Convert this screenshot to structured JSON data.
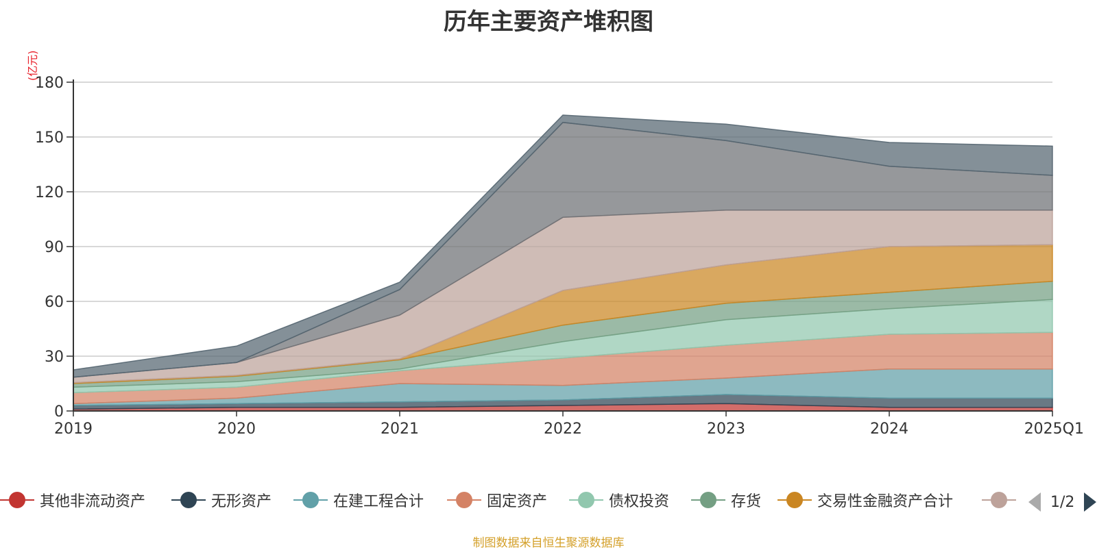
{
  "chart_data": {
    "type": "area",
    "title": "历年主要资产堆积图",
    "unit_label": "(亿元)",
    "categories": [
      "2019",
      "2020",
      "2021",
      "2022",
      "2023",
      "2024",
      "2025Q1"
    ],
    "ylim": [
      0,
      180
    ],
    "yticks": [
      "0",
      "30",
      "60",
      "90",
      "120",
      "150",
      "180"
    ],
    "grid": true,
    "stacked": true,
    "legend_position": "bottom",
    "series": [
      {
        "name": "其他非流动资产",
        "color": "#c23531",
        "values": [
          1,
          2,
          2,
          3,
          4,
          2,
          2
        ]
      },
      {
        "name": "无形资产",
        "color": "#2f4554",
        "values": [
          2,
          2,
          3,
          3,
          5,
          5,
          5
        ]
      },
      {
        "name": "在建工程合计",
        "color": "#61a0a8",
        "values": [
          1,
          3,
          10,
          8,
          9,
          16,
          16
        ]
      },
      {
        "name": "固定资产",
        "color": "#d48265",
        "values": [
          6,
          6,
          7,
          15,
          18,
          19,
          20
        ]
      },
      {
        "name": "债权投资",
        "color": "#91c7ae",
        "values": [
          3,
          3,
          1,
          9,
          14,
          14,
          18
        ]
      },
      {
        "name": "存货",
        "color": "#749f83",
        "values": [
          2,
          3,
          5,
          9,
          9,
          9,
          10
        ]
      },
      {
        "name": "交易性金融资产合计",
        "color": "#ca8622",
        "values": [
          0.5,
          0.5,
          0.5,
          19,
          21,
          25,
          20
        ]
      },
      {
        "name": "",
        "color": "#bda29a",
        "values": [
          3,
          7,
          24,
          40,
          30,
          20,
          19
        ]
      },
      {
        "name": "",
        "color": "#6e7074",
        "values": [
          0,
          0,
          14,
          52,
          38,
          24,
          19
        ]
      },
      {
        "name": "",
        "color": "#546570",
        "values": [
          4,
          9,
          4,
          4,
          9,
          13,
          16
        ]
      }
    ]
  },
  "legend": {
    "page_text": "1/2"
  },
  "source": "制图数据来自恒生聚源数据库"
}
